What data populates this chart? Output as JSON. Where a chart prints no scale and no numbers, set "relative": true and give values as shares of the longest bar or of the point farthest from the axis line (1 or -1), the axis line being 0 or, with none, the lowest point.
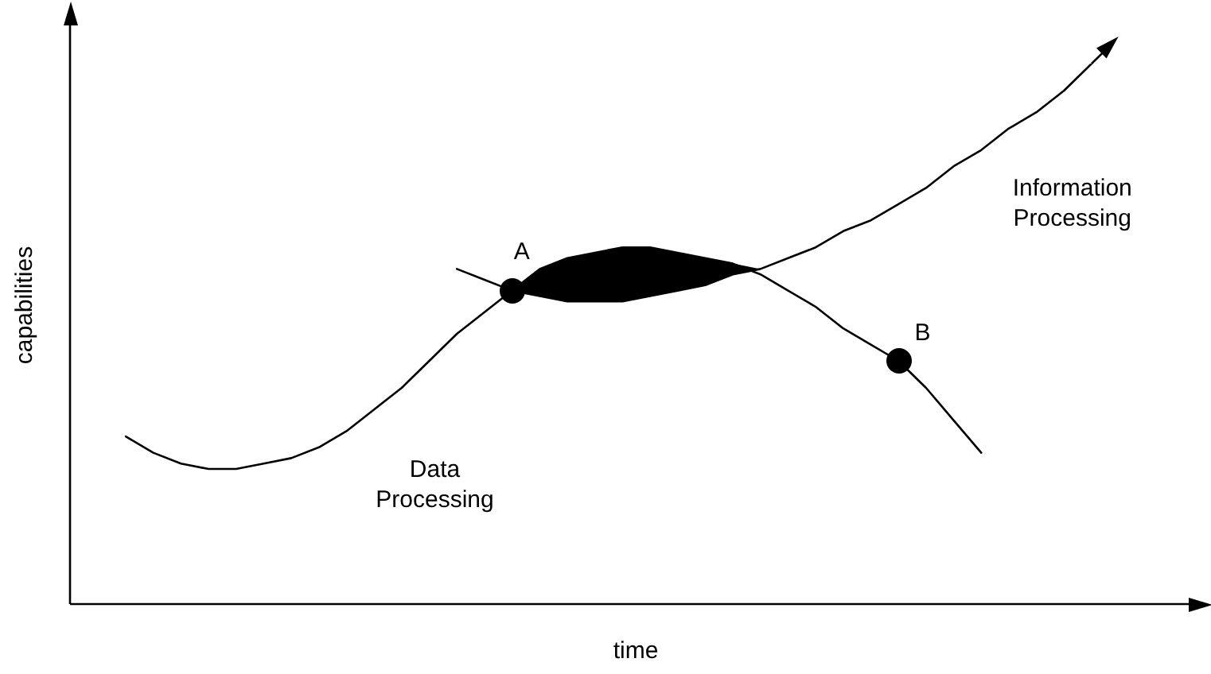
{
  "chart_data": {
    "type": "line",
    "relative": true,
    "xlabel": "time",
    "ylabel": "capabilities",
    "legend": false,
    "marker": "none",
    "line_style": "solid",
    "categories": [
      null,
      null,
      null,
      null,
      null,
      null,
      null,
      null,
      null,
      null,
      null,
      null,
      null,
      null,
      null,
      null,
      null,
      null,
      null,
      null,
      null,
      null,
      null,
      null,
      null,
      null,
      null,
      null,
      null,
      null,
      null,
      null,
      null,
      null,
      null,
      null
    ],
    "series": [
      {
        "color": "#000000",
        "values": [
          0.31,
          0.28,
          0.26,
          0.25,
          0.25,
          0.26,
          0.27,
          0.29,
          0.32,
          0.36,
          0.4,
          0.45,
          0.5,
          0.54,
          0.58,
          0.57,
          0.56,
          0.56,
          0.56,
          0.57,
          0.58,
          0.59,
          0.61,
          0.62,
          0.64,
          0.66,
          0.69,
          0.71,
          0.74,
          0.77,
          0.81,
          0.84,
          0.88,
          0.91,
          0.95,
          1
        ],
        "lower": [
          null,
          null,
          null,
          null,
          null,
          null,
          null,
          null,
          null,
          null,
          null,
          null,
          null,
          null,
          0.58,
          0.57,
          0.56,
          0.56,
          0.56,
          0.57,
          0.58,
          0.59,
          0.61,
          0.62,
          null,
          null,
          null,
          null,
          null,
          null,
          null,
          null,
          null,
          null,
          null,
          null
        ],
        "upper": [
          null,
          null,
          null,
          null,
          null,
          null,
          null,
          null,
          null,
          null,
          null,
          null,
          null,
          null,
          0.58,
          0.62,
          0.64,
          0.65,
          0.66,
          0.66,
          0.65,
          0.64,
          0.63,
          0.62,
          null,
          null,
          null,
          null,
          null,
          null,
          null,
          null,
          null,
          null,
          null,
          null
        ]
      },
      {
        "color": "#000000",
        "values": [
          null,
          null,
          null,
          null,
          null,
          null,
          null,
          null,
          null,
          null,
          null,
          null,
          0.62,
          0.6,
          0.58,
          0.62,
          0.64,
          0.65,
          0.66,
          0.66,
          0.65,
          0.64,
          0.63,
          0.61,
          0.58,
          0.55,
          0.51,
          0.48,
          0.45,
          0.4,
          0.34,
          0.28,
          null,
          null,
          null,
          null
        ]
      }
    ],
    "annotations": [
      "Data\nProcessing",
      "Information\nProcessing",
      "A",
      "B"
    ]
  }
}
